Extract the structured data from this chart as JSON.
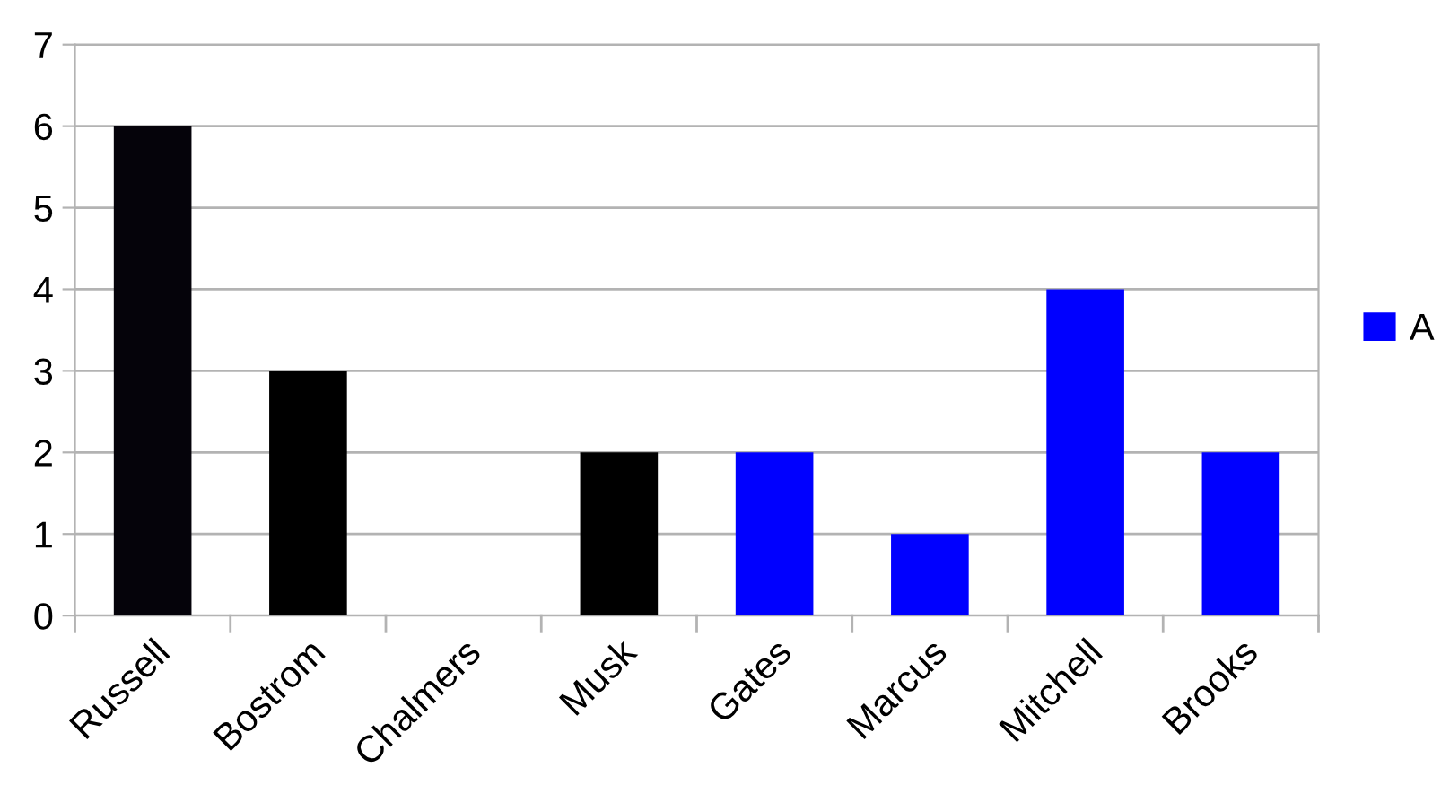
{
  "chart_data": {
    "type": "bar",
    "categories": [
      "Russell",
      "Bostrom",
      "Chalmers",
      "Musk",
      "Gates",
      "Marcus",
      "Mitchell",
      "Brooks"
    ],
    "series": [
      {
        "name": "A",
        "color": "#0000ff",
        "colors": [
          "#05030a",
          "#000000",
          "#000000",
          "#000000",
          "#0000ff",
          "#0000ff",
          "#0000ff",
          "#0000ff"
        ],
        "values": [
          6,
          3,
          0,
          2,
          2,
          1,
          4,
          2
        ]
      }
    ],
    "ylim": [
      0,
      7
    ],
    "yticks": [
      0,
      1,
      2,
      3,
      4,
      5,
      6,
      7
    ],
    "grid": "y",
    "legend": "right"
  }
}
